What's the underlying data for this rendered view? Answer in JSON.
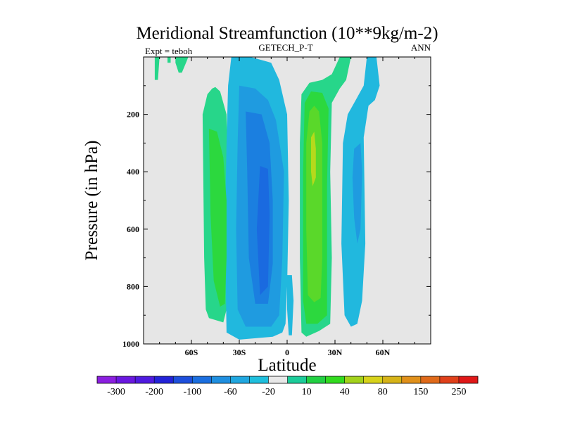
{
  "chart_data": {
    "type": "contour",
    "title": "Meridional Streamfunction (10**9kg/m-2)",
    "left_label": "Expt = teboh",
    "center_label": "GETECH_P-T",
    "right_label": "ANN",
    "xlabel": "Latitude",
    "ylabel": "Pressure (in hPa)",
    "xlim": [
      -90,
      90
    ],
    "ylim": [
      0,
      1000
    ],
    "y_inverted": true,
    "x_ticks": [
      {
        "value": -60,
        "label": "60S"
      },
      {
        "value": -30,
        "label": "30S"
      },
      {
        "value": 0,
        "label": "0"
      },
      {
        "value": 30,
        "label": "30N"
      },
      {
        "value": 60,
        "label": "60N"
      }
    ],
    "y_ticks": [
      {
        "value": 200,
        "label": "200"
      },
      {
        "value": 400,
        "label": "400"
      },
      {
        "value": 600,
        "label": "600"
      },
      {
        "value": 800,
        "label": "800"
      },
      {
        "value": 1000,
        "label": "1000"
      }
    ],
    "background_color": "#e6e6e6",
    "colorbar": {
      "colors": [
        "#8b1fe0",
        "#6a18e0",
        "#4f1ae0",
        "#2323d8",
        "#1d4fdc",
        "#1b6fe0",
        "#1f8fe0",
        "#20a7e0",
        "#1fbfdd",
        "#e8e8e8",
        "#1ccc9a",
        "#22d042",
        "#32db1f",
        "#a3d21b",
        "#d7d21a",
        "#d6b318",
        "#e0901a",
        "#e06a1a",
        "#e0401a",
        "#e01818"
      ],
      "labels": [
        "-300",
        "-200",
        "-100",
        "-60",
        "-20",
        "10",
        "40",
        "80",
        "150",
        "250"
      ]
    },
    "regions": [
      {
        "name": "ross-top-a",
        "value": 10,
        "level": 1,
        "points": [
          [
            -75,
            0
          ],
          [
            -73,
            0
          ],
          [
            -73,
            20
          ],
          [
            -75,
            20
          ]
        ]
      },
      {
        "name": "ross-top-b",
        "value": 10,
        "level": 1,
        "points": [
          [
            -70,
            0
          ],
          [
            -62,
            0
          ],
          [
            -63,
            15
          ],
          [
            -66,
            55
          ],
          [
            -68,
            55
          ],
          [
            -70,
            20
          ]
        ]
      },
      {
        "name": "ross-top-c",
        "value": 10,
        "level": 1,
        "points": [
          [
            -83,
            0
          ],
          [
            -80,
            0
          ],
          [
            -81,
            80
          ],
          [
            -83,
            80
          ]
        ]
      },
      {
        "name": "ferrel-s-1",
        "value": 10,
        "level": 1,
        "points": [
          [
            -47,
            110
          ],
          [
            -50,
            130
          ],
          [
            -53,
            200
          ],
          [
            -52,
            700
          ],
          [
            -51,
            880
          ],
          [
            -49,
            910
          ],
          [
            -40,
            925
          ],
          [
            -38,
            880
          ],
          [
            -37,
            700
          ],
          [
            -37,
            400
          ],
          [
            -38,
            200
          ],
          [
            -42,
            120
          ],
          [
            -45,
            105
          ]
        ]
      },
      {
        "name": "ferrel-s-2",
        "value": 40,
        "level": 2,
        "points": [
          [
            -49,
            250
          ],
          [
            -48,
            550
          ],
          [
            -46,
            780
          ],
          [
            -42,
            870
          ],
          [
            -39,
            860
          ],
          [
            -38,
            700
          ],
          [
            -38,
            500
          ],
          [
            -40,
            350
          ],
          [
            -44,
            260
          ]
        ]
      },
      {
        "name": "hadley-s-1",
        "value": -20,
        "level": 1,
        "points": [
          [
            -35,
            0
          ],
          [
            -23,
            0
          ],
          [
            -10,
            20
          ],
          [
            -5,
            80
          ],
          [
            0,
            200
          ],
          [
            1,
            500
          ],
          [
            0,
            800
          ],
          [
            -1,
            930
          ],
          [
            -3,
            960
          ],
          [
            -9,
            975
          ],
          [
            -30,
            985
          ],
          [
            -38,
            960
          ],
          [
            -39,
            600
          ],
          [
            -38,
            300
          ],
          [
            -37,
            100
          ]
        ]
      },
      {
        "name": "hadley-s-2",
        "value": -60,
        "level": 2,
        "points": [
          [
            -30,
            100
          ],
          [
            -20,
            110
          ],
          [
            -12,
            150
          ],
          [
            -7,
            220
          ],
          [
            -2,
            400
          ],
          [
            -3,
            700
          ],
          [
            -5,
            900
          ],
          [
            -10,
            940
          ],
          [
            -26,
            940
          ],
          [
            -31,
            880
          ],
          [
            -32,
            600
          ],
          [
            -31,
            300
          ]
        ]
      },
      {
        "name": "hadley-s-3",
        "value": -100,
        "level": 3,
        "points": [
          [
            -26,
            190
          ],
          [
            -16,
            200
          ],
          [
            -11,
            300
          ],
          [
            -9,
            500
          ],
          [
            -9,
            720
          ],
          [
            -12,
            860
          ],
          [
            -20,
            860
          ],
          [
            -24,
            700
          ],
          [
            -25,
            400
          ]
        ]
      },
      {
        "name": "hadley-s-4",
        "value": -100,
        "level": 4,
        "points": [
          [
            -17,
            380
          ],
          [
            -12,
            390
          ],
          [
            -11,
            550
          ],
          [
            -12,
            800
          ],
          [
            -17,
            830
          ],
          [
            -19,
            600
          ]
        ]
      },
      {
        "name": "hadley-s-5",
        "value": -20,
        "level": 1,
        "points": [
          [
            0,
            760
          ],
          [
            3,
            760
          ],
          [
            4,
            850
          ],
          [
            3,
            970
          ],
          [
            1,
            970
          ],
          [
            0,
            880
          ]
        ]
      },
      {
        "name": "hadley-n-1",
        "value": 10,
        "level": 1,
        "points": [
          [
            33,
            0
          ],
          [
            40,
            0
          ],
          [
            37,
            80
          ],
          [
            33,
            110
          ],
          [
            28,
            160
          ],
          [
            27,
            400
          ],
          [
            28,
            700
          ],
          [
            27,
            930
          ],
          [
            20,
            955
          ],
          [
            12,
            975
          ],
          [
            9,
            960
          ],
          [
            8,
            700
          ],
          [
            8,
            300
          ],
          [
            9,
            130
          ],
          [
            14,
            90
          ],
          [
            22,
            80
          ],
          [
            28,
            60
          ]
        ]
      },
      {
        "name": "hadley-n-2",
        "value": 40,
        "level": 2,
        "points": [
          [
            11,
            160
          ],
          [
            15,
            120
          ],
          [
            22,
            125
          ],
          [
            26,
            180
          ],
          [
            25,
            450
          ],
          [
            25,
            900
          ],
          [
            19,
            930
          ],
          [
            12,
            930
          ],
          [
            10,
            850
          ],
          [
            10,
            400
          ]
        ]
      },
      {
        "name": "hadley-n-3",
        "value": 40,
        "level": 3,
        "points": [
          [
            14,
            190
          ],
          [
            17,
            170
          ],
          [
            20,
            190
          ],
          [
            22,
            300
          ],
          [
            22,
            700
          ],
          [
            21,
            840
          ],
          [
            17,
            855
          ],
          [
            13,
            830
          ],
          [
            12,
            600
          ],
          [
            12,
            300
          ]
        ]
      },
      {
        "name": "hadley-n-4",
        "value": 80,
        "level": 4,
        "points": [
          [
            15,
            280
          ],
          [
            17,
            260
          ],
          [
            18,
            320
          ],
          [
            18,
            420
          ],
          [
            16,
            450
          ],
          [
            15,
            400
          ]
        ]
      },
      {
        "name": "ferrel-n-1",
        "value": -20,
        "level": 1,
        "points": [
          [
            50,
            0
          ],
          [
            56,
            0
          ],
          [
            58,
            100
          ],
          [
            55,
            150
          ],
          [
            51,
            170
          ],
          [
            48,
            280
          ],
          [
            49,
            650
          ],
          [
            47,
            850
          ],
          [
            44,
            930
          ],
          [
            40,
            940
          ],
          [
            36,
            900
          ],
          [
            34,
            650
          ],
          [
            35,
            300
          ],
          [
            38,
            200
          ],
          [
            43,
            150
          ],
          [
            48,
            100
          ]
        ]
      },
      {
        "name": "ferrel-n-2",
        "value": -60,
        "level": 2,
        "points": [
          [
            42,
            320
          ],
          [
            46,
            300
          ],
          [
            47,
            400
          ],
          [
            46,
            600
          ],
          [
            44,
            650
          ],
          [
            42,
            560
          ],
          [
            41,
            420
          ]
        ]
      }
    ]
  }
}
